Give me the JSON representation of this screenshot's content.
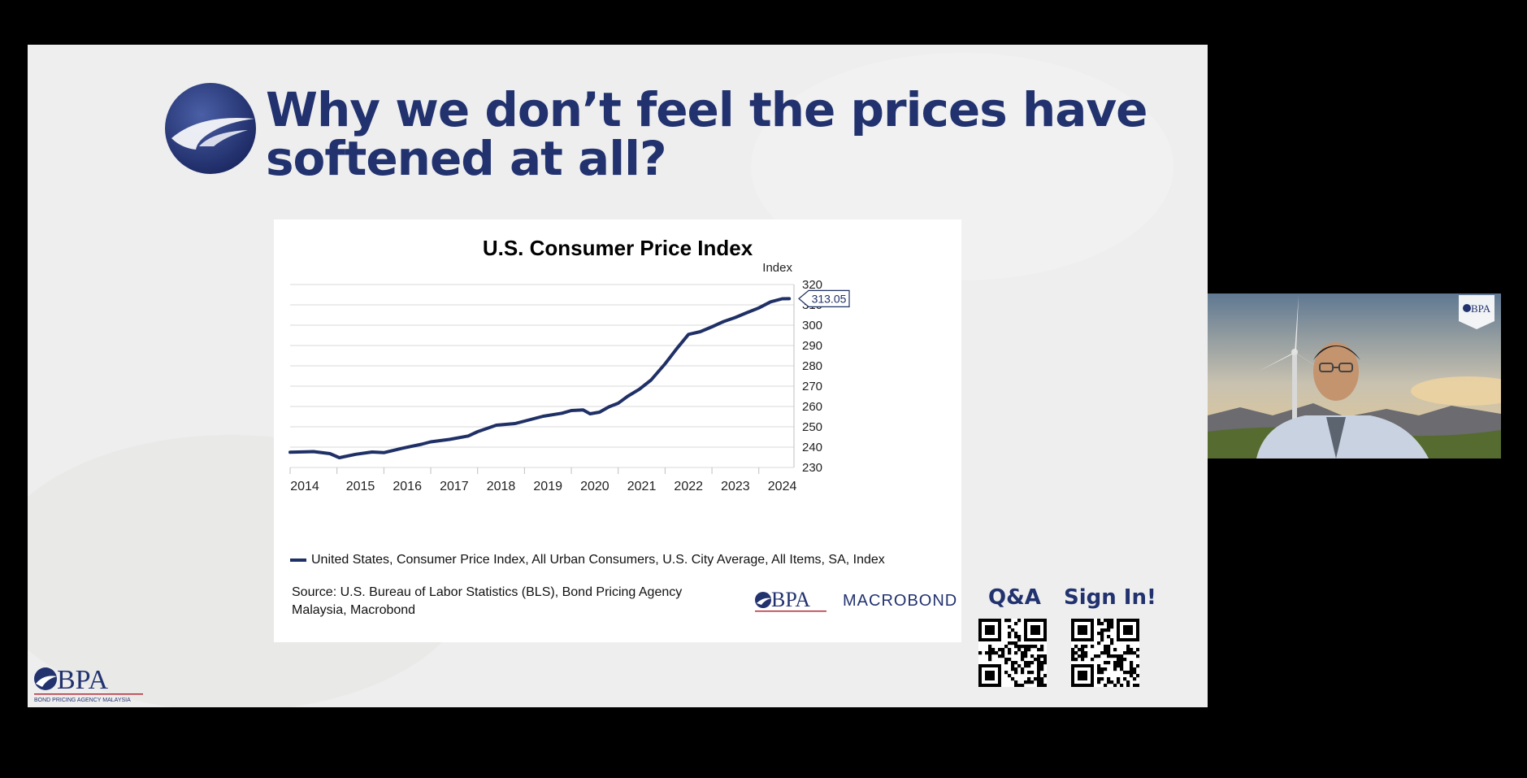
{
  "slide": {
    "title": "Why we don’t feel the prices have softened at all?",
    "accent_color": "#22326f",
    "background_color": "#ebebea"
  },
  "chart": {
    "title": "U.S. Consumer Price Index",
    "unit_label": "Index",
    "y_ticks": [
      "230",
      "240",
      "250",
      "260",
      "270",
      "280",
      "290",
      "300",
      "310",
      "320"
    ],
    "x_ticks": [
      "2014",
      "2015",
      "2016",
      "2017",
      "2018",
      "2019",
      "2020",
      "2021",
      "2022",
      "2023",
      "2024"
    ],
    "last_value_label": "313.05",
    "legend": "United States, Consumer Price Index, All Urban Consumers, U.S. City Average, All Items, SA, Index",
    "source": "Source: U.S. Bureau of Labor Statistics (BLS), Bond Pricing Agency Malaysia, Macrobond",
    "line_color": "#1f3066"
  },
  "chart_data": {
    "type": "line",
    "title": "U.S. Consumer Price Index",
    "ylabel": "Index",
    "xlabel": "",
    "ylim": [
      230,
      320
    ],
    "xlim": [
      2014.0,
      2024.75
    ],
    "grid": true,
    "legend_position": "bottom",
    "series": [
      {
        "name": "United States, Consumer Price Index, All Urban Consumers, U.S. City Average, All Items, SA, Index",
        "points": [
          [
            2014.0,
            237.5
          ],
          [
            2014.5,
            237.8
          ],
          [
            2014.85,
            236.8
          ],
          [
            2015.05,
            234.8
          ],
          [
            2015.4,
            236.5
          ],
          [
            2015.75,
            237.6
          ],
          [
            2016.0,
            237.3
          ],
          [
            2016.4,
            239.5
          ],
          [
            2016.8,
            241.4
          ],
          [
            2017.0,
            242.6
          ],
          [
            2017.4,
            243.8
          ],
          [
            2017.8,
            245.5
          ],
          [
            2018.0,
            247.6
          ],
          [
            2018.4,
            250.8
          ],
          [
            2018.8,
            251.6
          ],
          [
            2019.0,
            252.8
          ],
          [
            2019.4,
            255.2
          ],
          [
            2019.8,
            256.7
          ],
          [
            2020.0,
            258.0
          ],
          [
            2020.25,
            258.3
          ],
          [
            2020.4,
            256.4
          ],
          [
            2020.6,
            257.2
          ],
          [
            2020.8,
            259.8
          ],
          [
            2021.0,
            261.6
          ],
          [
            2021.2,
            265.0
          ],
          [
            2021.45,
            268.5
          ],
          [
            2021.7,
            273.0
          ],
          [
            2022.0,
            281.0
          ],
          [
            2022.25,
            288.5
          ],
          [
            2022.5,
            295.5
          ],
          [
            2022.75,
            296.8
          ],
          [
            2023.0,
            299.2
          ],
          [
            2023.25,
            301.8
          ],
          [
            2023.5,
            303.8
          ],
          [
            2023.75,
            306.2
          ],
          [
            2024.0,
            308.5
          ],
          [
            2024.25,
            311.5
          ],
          [
            2024.5,
            313.0
          ],
          [
            2024.65,
            313.05
          ]
        ]
      }
    ]
  },
  "qr": {
    "qa_label": "Q&A",
    "signin_label": "Sign In!"
  },
  "logos": {
    "bpa_text": "BPA",
    "bpa_subtext": "BOND PRICING AGENCY MALAYSIA",
    "macrobond_text": "MACROBOND"
  }
}
